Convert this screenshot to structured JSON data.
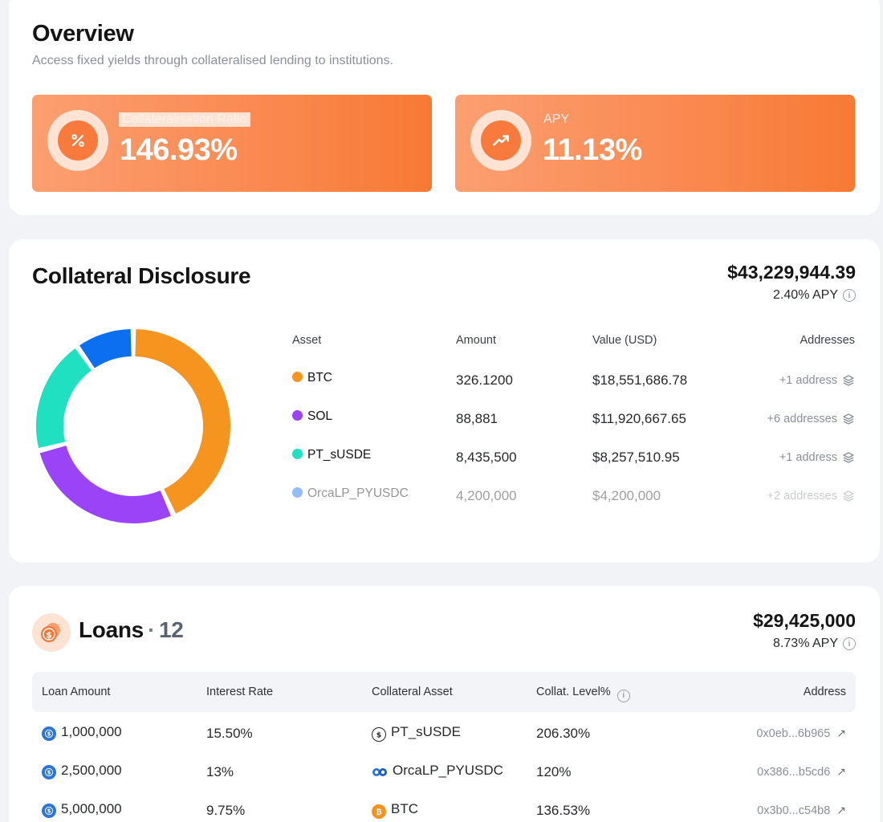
{
  "overview": {
    "title": "Overview",
    "subtitle": "Access fixed yields through collateralised lending to institutions.",
    "stats": [
      {
        "label": "Collateralisation Ratio",
        "value": "146.93%",
        "icon": "percent-icon"
      },
      {
        "label": "APY",
        "value": "11.13%",
        "icon": "trending-up-icon"
      }
    ]
  },
  "collateral": {
    "title": "Collateral Disclosure",
    "total_value": "$43,229,944.39",
    "apy": "2.40% APY",
    "headers": {
      "asset": "Asset",
      "amount": "Amount",
      "value": "Value (USD)",
      "addresses": "Addresses"
    },
    "rows": [
      {
        "asset": "BTC",
        "amount": "326.1200",
        "value": "$18,551,686.78",
        "addresses": "+1 address",
        "color": "#f59520"
      },
      {
        "asset": "SOL",
        "amount": "88,881",
        "value": "$11,920,667.65",
        "addresses": "+6 addresses",
        "color": "#9b44f7"
      },
      {
        "asset": "PT_sUSDE",
        "amount": "8,435,500",
        "value": "$8,257,510.95",
        "addresses": "+1 address",
        "color": "#1fe0c0"
      },
      {
        "asset": "OrcaLP_PYUSDC",
        "amount": "4,200,000",
        "value": "$4,200,000",
        "addresses": "+2 addresses",
        "color": "#0b6ff0"
      }
    ],
    "chart_data": {
      "type": "pie",
      "categories": [
        "BTC",
        "SOL",
        "PT_sUSDE",
        "OrcaLP_PYUSDC"
      ],
      "values": [
        18551686.78,
        11920667.65,
        8257510.95,
        4200000
      ],
      "colors": [
        "#f59520",
        "#9b44f7",
        "#1fe0c0",
        "#0b6ff0"
      ]
    }
  },
  "loans": {
    "title": "Loans",
    "count": "12",
    "total_value": "$29,425,000",
    "apy": "8.73% APY",
    "headers": {
      "loan_amount": "Loan Amount",
      "interest_rate": "Interest Rate",
      "collateral_asset": "Collateral Asset",
      "collat_level": "Collat. Level%",
      "address": "Address"
    },
    "rows": [
      {
        "amount": "1,000,000",
        "rate": "15.50%",
        "collateral": "PT_sUSDE",
        "level": "206.30%",
        "address": "0x0eb...6b965"
      },
      {
        "amount": "2,500,000",
        "rate": "13%",
        "collateral": "OrcaLP_PYUSDC",
        "level": "120%",
        "address": "0x386...b5cd6"
      },
      {
        "amount": "5,000,000",
        "rate": "9.75%",
        "collateral": "BTC",
        "level": "136.53%",
        "address": "0x3b0...c54b8"
      }
    ]
  }
}
